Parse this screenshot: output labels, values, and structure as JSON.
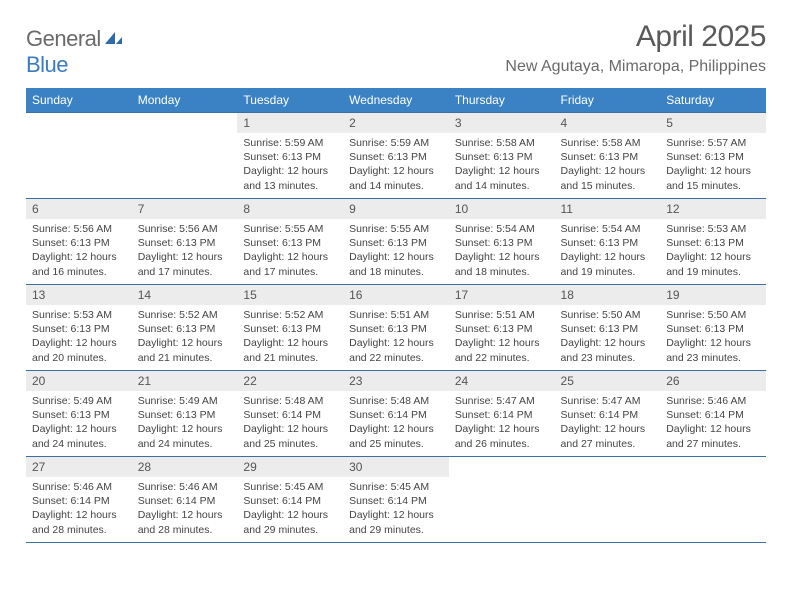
{
  "brand": {
    "part1": "General",
    "part2": "Blue"
  },
  "title": "April 2025",
  "location": "New Agutaya, Mimaropa, Philippines",
  "colors": {
    "header_bg": "#3b82c4",
    "header_text": "#ffffff",
    "row_border": "#3b6fa0",
    "daynum_bg": "#ececec",
    "text": "#444444",
    "brand_gray": "#6a6a6a",
    "brand_blue": "#3b7bbf"
  },
  "weekdays": [
    "Sunday",
    "Monday",
    "Tuesday",
    "Wednesday",
    "Thursday",
    "Friday",
    "Saturday"
  ],
  "first_day_index": 2,
  "days": [
    {
      "n": 1,
      "sunrise": "5:59 AM",
      "sunset": "6:13 PM",
      "daylight": "12 hours and 13 minutes."
    },
    {
      "n": 2,
      "sunrise": "5:59 AM",
      "sunset": "6:13 PM",
      "daylight": "12 hours and 14 minutes."
    },
    {
      "n": 3,
      "sunrise": "5:58 AM",
      "sunset": "6:13 PM",
      "daylight": "12 hours and 14 minutes."
    },
    {
      "n": 4,
      "sunrise": "5:58 AM",
      "sunset": "6:13 PM",
      "daylight": "12 hours and 15 minutes."
    },
    {
      "n": 5,
      "sunrise": "5:57 AM",
      "sunset": "6:13 PM",
      "daylight": "12 hours and 15 minutes."
    },
    {
      "n": 6,
      "sunrise": "5:56 AM",
      "sunset": "6:13 PM",
      "daylight": "12 hours and 16 minutes."
    },
    {
      "n": 7,
      "sunrise": "5:56 AM",
      "sunset": "6:13 PM",
      "daylight": "12 hours and 17 minutes."
    },
    {
      "n": 8,
      "sunrise": "5:55 AM",
      "sunset": "6:13 PM",
      "daylight": "12 hours and 17 minutes."
    },
    {
      "n": 9,
      "sunrise": "5:55 AM",
      "sunset": "6:13 PM",
      "daylight": "12 hours and 18 minutes."
    },
    {
      "n": 10,
      "sunrise": "5:54 AM",
      "sunset": "6:13 PM",
      "daylight": "12 hours and 18 minutes."
    },
    {
      "n": 11,
      "sunrise": "5:54 AM",
      "sunset": "6:13 PM",
      "daylight": "12 hours and 19 minutes."
    },
    {
      "n": 12,
      "sunrise": "5:53 AM",
      "sunset": "6:13 PM",
      "daylight": "12 hours and 19 minutes."
    },
    {
      "n": 13,
      "sunrise": "5:53 AM",
      "sunset": "6:13 PM",
      "daylight": "12 hours and 20 minutes."
    },
    {
      "n": 14,
      "sunrise": "5:52 AM",
      "sunset": "6:13 PM",
      "daylight": "12 hours and 21 minutes."
    },
    {
      "n": 15,
      "sunrise": "5:52 AM",
      "sunset": "6:13 PM",
      "daylight": "12 hours and 21 minutes."
    },
    {
      "n": 16,
      "sunrise": "5:51 AM",
      "sunset": "6:13 PM",
      "daylight": "12 hours and 22 minutes."
    },
    {
      "n": 17,
      "sunrise": "5:51 AM",
      "sunset": "6:13 PM",
      "daylight": "12 hours and 22 minutes."
    },
    {
      "n": 18,
      "sunrise": "5:50 AM",
      "sunset": "6:13 PM",
      "daylight": "12 hours and 23 minutes."
    },
    {
      "n": 19,
      "sunrise": "5:50 AM",
      "sunset": "6:13 PM",
      "daylight": "12 hours and 23 minutes."
    },
    {
      "n": 20,
      "sunrise": "5:49 AM",
      "sunset": "6:13 PM",
      "daylight": "12 hours and 24 minutes."
    },
    {
      "n": 21,
      "sunrise": "5:49 AM",
      "sunset": "6:13 PM",
      "daylight": "12 hours and 24 minutes."
    },
    {
      "n": 22,
      "sunrise": "5:48 AM",
      "sunset": "6:14 PM",
      "daylight": "12 hours and 25 minutes."
    },
    {
      "n": 23,
      "sunrise": "5:48 AM",
      "sunset": "6:14 PM",
      "daylight": "12 hours and 25 minutes."
    },
    {
      "n": 24,
      "sunrise": "5:47 AM",
      "sunset": "6:14 PM",
      "daylight": "12 hours and 26 minutes."
    },
    {
      "n": 25,
      "sunrise": "5:47 AM",
      "sunset": "6:14 PM",
      "daylight": "12 hours and 27 minutes."
    },
    {
      "n": 26,
      "sunrise": "5:46 AM",
      "sunset": "6:14 PM",
      "daylight": "12 hours and 27 minutes."
    },
    {
      "n": 27,
      "sunrise": "5:46 AM",
      "sunset": "6:14 PM",
      "daylight": "12 hours and 28 minutes."
    },
    {
      "n": 28,
      "sunrise": "5:46 AM",
      "sunset": "6:14 PM",
      "daylight": "12 hours and 28 minutes."
    },
    {
      "n": 29,
      "sunrise": "5:45 AM",
      "sunset": "6:14 PM",
      "daylight": "12 hours and 29 minutes."
    },
    {
      "n": 30,
      "sunrise": "5:45 AM",
      "sunset": "6:14 PM",
      "daylight": "12 hours and 29 minutes."
    }
  ],
  "labels": {
    "sunrise": "Sunrise:",
    "sunset": "Sunset:",
    "daylight": "Daylight:"
  }
}
